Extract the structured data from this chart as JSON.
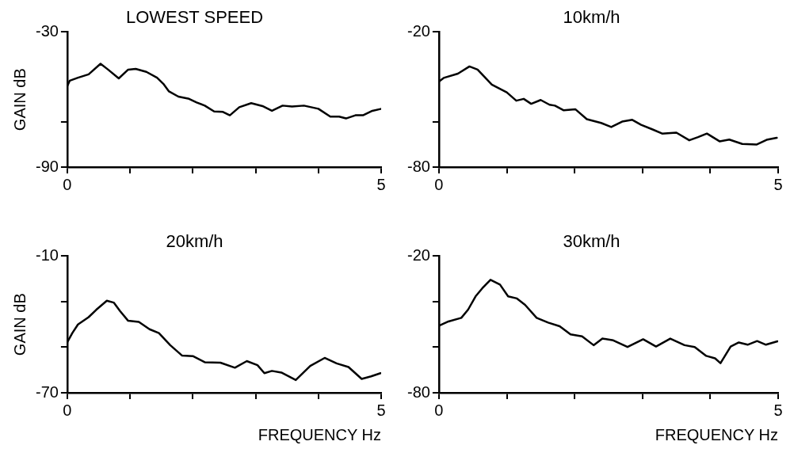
{
  "chart_data": [
    {
      "type": "line",
      "title": "LOWEST SPEED",
      "ylabel": "GAIN dB",
      "xlim": [
        0,
        5
      ],
      "xticks": [
        {
          "value": 0,
          "label": "0"
        },
        {
          "value": 1,
          "label": null
        },
        {
          "value": 2,
          "label": null
        },
        {
          "value": 3,
          "label": null
        },
        {
          "value": 4,
          "label": null
        },
        {
          "value": 5,
          "label": "5"
        }
      ],
      "ylim": [
        -90,
        -30
      ],
      "yticks": [
        -90,
        {
          "value": -70,
          "label": null
        },
        -30
      ],
      "grid": false,
      "legend": false,
      "series": [
        {
          "color": "#000000",
          "x": [
            0,
            0.04,
            0.17,
            0.34,
            0.53,
            0.65,
            0.82,
            0.97,
            1.09,
            1.26,
            1.43,
            1.53,
            1.62,
            1.77,
            1.94,
            2.06,
            2.19,
            2.34,
            2.48,
            2.59,
            2.74,
            2.93,
            3.11,
            3.26,
            3.43,
            3.58,
            3.77,
            4.0,
            4.19,
            4.33,
            4.44,
            4.59,
            4.71,
            4.86,
            4.99
          ],
          "values": [
            -54,
            -51.6,
            -50.3,
            -48.8,
            -44.1,
            -46.7,
            -50.6,
            -46.7,
            -46.4,
            -47.7,
            -50.3,
            -53,
            -56.4,
            -58.7,
            -59.7,
            -61.3,
            -62.7,
            -65.3,
            -65.5,
            -67,
            -63.4,
            -61.6,
            -62.9,
            -65,
            -62.7,
            -63.1,
            -62.7,
            -64.1,
            -67.6,
            -67.6,
            -68.4,
            -67,
            -67,
            -65,
            -64.2
          ]
        }
      ]
    },
    {
      "type": "line",
      "title": "10km/h",
      "xlim": [
        0,
        5
      ],
      "xticks": [
        {
          "value": 0,
          "label": "0"
        },
        {
          "value": 1,
          "label": null
        },
        {
          "value": 2,
          "label": null
        },
        {
          "value": 3,
          "label": null
        },
        {
          "value": 4,
          "label": null
        },
        {
          "value": 5,
          "label": "5"
        }
      ],
      "ylim": [
        -80,
        -20
      ],
      "yticks": [
        -80,
        {
          "value": -60,
          "label": null
        },
        -20
      ],
      "grid": false,
      "legend": false,
      "series": [
        {
          "color": "#000000",
          "x": [
            0,
            0.07,
            0.28,
            0.45,
            0.57,
            0.78,
            1.0,
            1.14,
            1.25,
            1.36,
            1.5,
            1.63,
            1.71,
            1.84,
            2.01,
            2.18,
            2.39,
            2.54,
            2.7,
            2.85,
            2.98,
            3.15,
            3.29,
            3.5,
            3.69,
            3.82,
            3.95,
            4.14,
            4.28,
            4.47,
            4.68,
            4.83,
            4.98
          ],
          "values": [
            -42,
            -40.4,
            -38.5,
            -35.3,
            -36.7,
            -43.4,
            -46.8,
            -50.5,
            -49.7,
            -51.9,
            -50.2,
            -52.3,
            -52.7,
            -54.8,
            -54.3,
            -58.7,
            -60.4,
            -62.2,
            -59.8,
            -59,
            -61.2,
            -63.3,
            -65.1,
            -64.7,
            -68.1,
            -66.7,
            -65.1,
            -68.6,
            -67.8,
            -69.7,
            -70,
            -67.9,
            -67
          ]
        }
      ]
    },
    {
      "type": "line",
      "title": "20km/h",
      "xlabel": "FREQUENCY Hz",
      "ylabel": "GAIN dB",
      "xlim": [
        0,
        5
      ],
      "xticks": [
        {
          "value": 0,
          "label": "0"
        },
        {
          "value": 1,
          "label": null
        },
        {
          "value": 2,
          "label": null
        },
        {
          "value": 3,
          "label": null
        },
        {
          "value": 4,
          "label": null
        },
        {
          "value": 5,
          "label": "5"
        }
      ],
      "ylim": [
        -70,
        -10
      ],
      "yticks": [
        -70,
        {
          "value": -50,
          "label": null
        },
        {
          "value": -30,
          "label": null
        },
        -10
      ],
      "grid": false,
      "legend": false,
      "series": [
        {
          "color": "#000000",
          "x": [
            0,
            0.08,
            0.17,
            0.34,
            0.46,
            0.63,
            0.74,
            0.84,
            0.97,
            1.14,
            1.31,
            1.46,
            1.64,
            1.83,
            2.0,
            2.19,
            2.44,
            2.67,
            2.86,
            3.03,
            3.14,
            3.26,
            3.41,
            3.64,
            3.87,
            4.1,
            4.29,
            4.48,
            4.69,
            4.84,
            4.99
          ],
          "values": [
            -47.8,
            -43.8,
            -40,
            -36.8,
            -33.6,
            -29.6,
            -30.4,
            -34.1,
            -38.4,
            -38.9,
            -42.1,
            -43.8,
            -49.1,
            -53.7,
            -53.9,
            -56.6,
            -56.8,
            -59,
            -56.1,
            -57.9,
            -61.4,
            -60.4,
            -61.1,
            -64.4,
            -58.2,
            -54.7,
            -57.1,
            -58.7,
            -63.9,
            -62.8,
            -61.4
          ]
        }
      ]
    },
    {
      "type": "line",
      "title": "30km/h",
      "xlabel": "FREQUENCY Hz",
      "xlim": [
        0,
        5
      ],
      "xticks": [
        {
          "value": 0,
          "label": "0"
        },
        {
          "value": 1,
          "label": null
        },
        {
          "value": 2,
          "label": null
        },
        {
          "value": 3,
          "label": null
        },
        {
          "value": 4,
          "label": null
        },
        {
          "value": 5,
          "label": "5"
        }
      ],
      "ylim": [
        -80,
        -20
      ],
      "yticks": [
        -80,
        {
          "value": -60,
          "label": null
        },
        {
          "value": -40,
          "label": null
        },
        -20
      ],
      "grid": false,
      "legend": false,
      "series": [
        {
          "color": "#000000",
          "x": [
            0,
            0.14,
            0.33,
            0.43,
            0.54,
            0.64,
            0.76,
            0.9,
            1.02,
            1.15,
            1.27,
            1.44,
            1.61,
            1.78,
            1.94,
            2.11,
            2.28,
            2.41,
            2.57,
            2.78,
            3.01,
            3.2,
            3.41,
            3.62,
            3.77,
            3.94,
            4.07,
            4.15,
            4.3,
            4.42,
            4.55,
            4.69,
            4.82,
            4.99
          ],
          "values": [
            -50.6,
            -48.7,
            -47.1,
            -43.5,
            -37.7,
            -34.1,
            -30.4,
            -32.5,
            -37.7,
            -38.6,
            -41.4,
            -47.1,
            -49.2,
            -50.8,
            -54.4,
            -55.2,
            -59.1,
            -56.2,
            -57,
            -59.9,
            -56.5,
            -59.7,
            -56.2,
            -59.1,
            -59.9,
            -63.8,
            -64.9,
            -67,
            -59.7,
            -57.9,
            -58.9,
            -57.3,
            -58.9,
            -57.4
          ]
        }
      ]
    }
  ]
}
